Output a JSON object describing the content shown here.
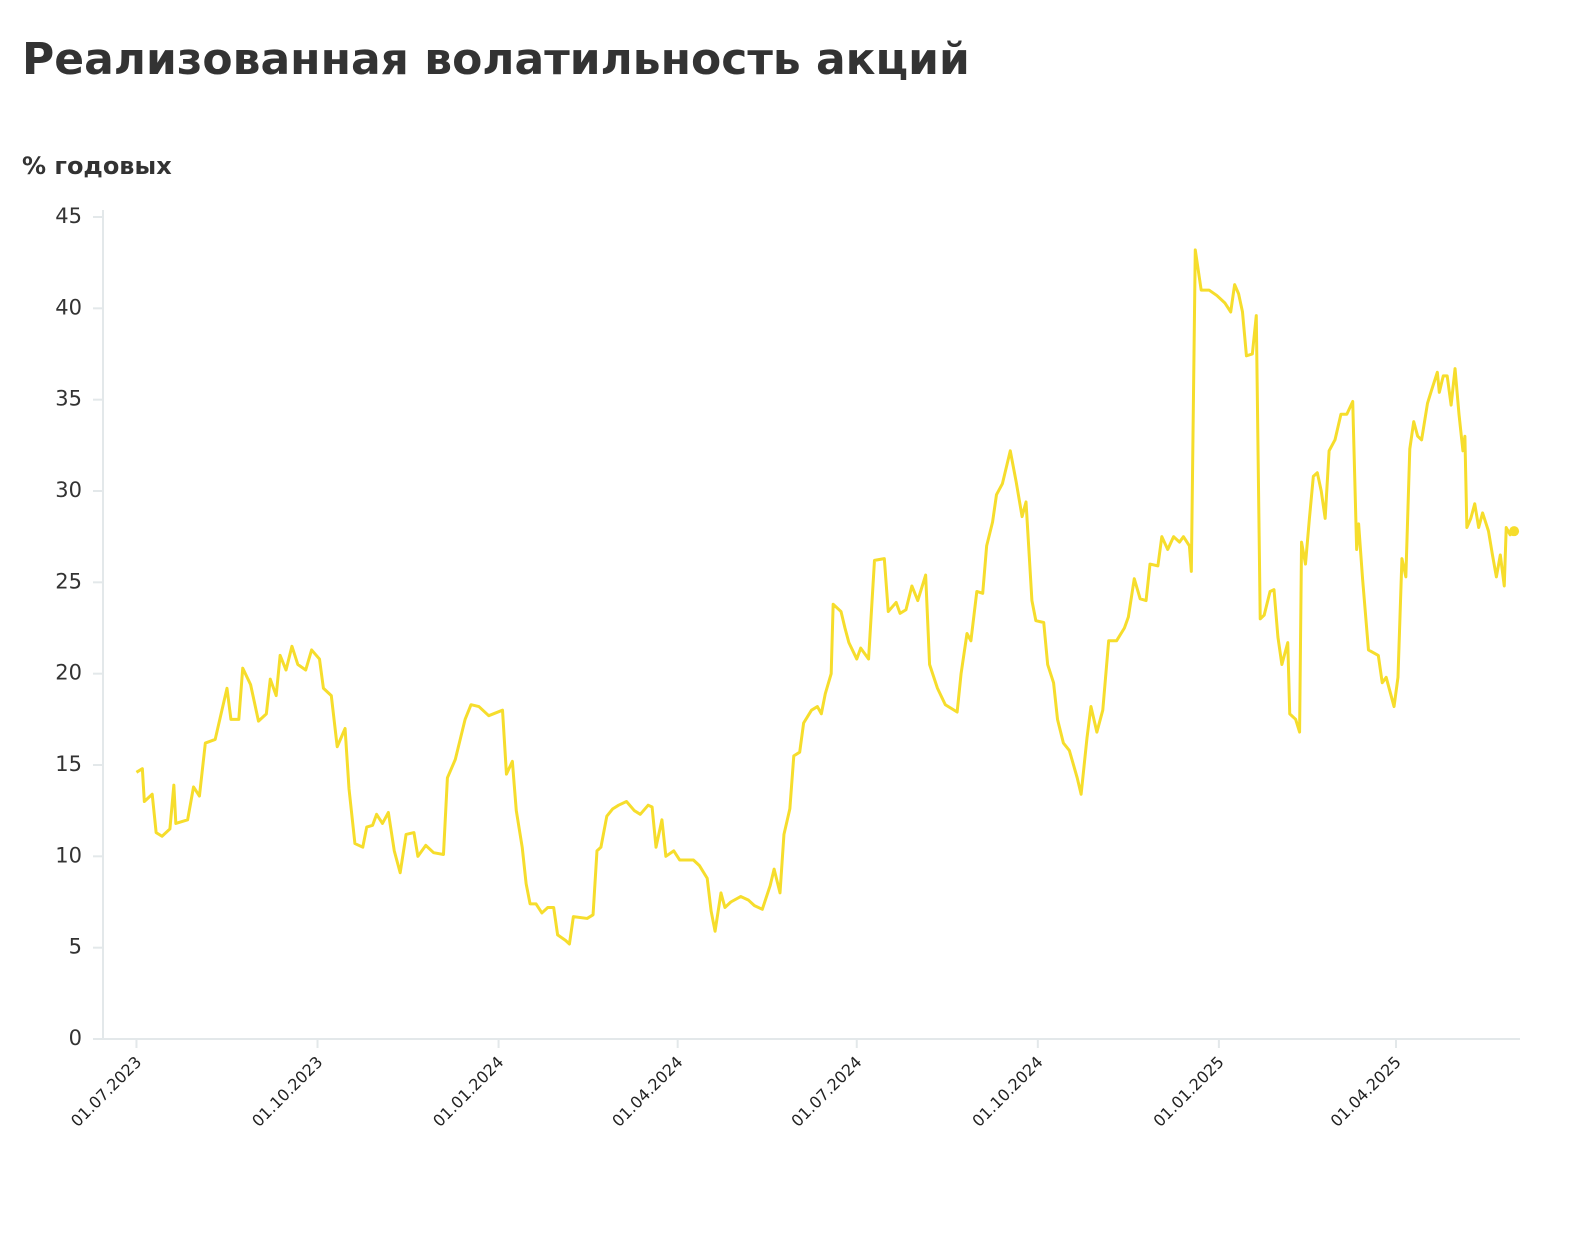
{
  "chart_data": {
    "type": "line",
    "title": "Реализованная волатильность акций",
    "y_label": "% годовых",
    "ylim": [
      0,
      45
    ],
    "yticks": [
      0,
      5,
      10,
      15,
      20,
      25,
      30,
      35,
      40,
      45
    ],
    "xlim": [
      "14.06.2023",
      "03.06.2025"
    ],
    "xticks": [
      "01.07.2023",
      "01.10.2023",
      "01.01.2024",
      "01.04.2024",
      "01.07.2024",
      "01.10.2024",
      "01.01.2025",
      "01.04.2025"
    ],
    "grid": false,
    "series": [
      {
        "color": "#f6dd2c",
        "x": [
          "01.07.2023",
          "04.07.2023",
          "05.07.2023",
          "09.07.2023",
          "11.07.2023",
          "14.07.2023",
          "18.07.2023",
          "20.07.2023",
          "21.07.2023",
          "27.07.2023",
          "30.07.2023",
          "02.08.2023",
          "05.08.2023",
          "10.08.2023",
          "13.08.2023",
          "16.08.2023",
          "18.08.2023",
          "22.08.2023",
          "24.08.2023",
          "28.08.2023",
          "01.09.2023",
          "05.09.2023",
          "07.09.2023",
          "10.09.2023",
          "12.09.2023",
          "15.09.2023",
          "18.09.2023",
          "21.09.2023",
          "25.09.2023",
          "28.09.2023",
          "02.10.2023",
          "04.10.2023",
          "08.10.2023",
          "11.10.2023",
          "15.10.2023",
          "17.10.2023",
          "20.10.2023",
          "24.10.2023",
          "26.10.2023",
          "29.10.2023",
          "31.10.2023",
          "03.11.2023",
          "06.11.2023",
          "09.11.2023",
          "12.11.2023",
          "15.11.2023",
          "19.11.2023",
          "21.11.2023",
          "25.11.2023",
          "29.11.2023",
          "04.12.2023",
          "06.12.2023",
          "10.12.2023",
          "15.12.2023",
          "18.12.2023",
          "22.12.2023",
          "27.12.2023",
          "03.01.2024",
          "05.01.2024",
          "08.01.2024",
          "10.01.2024",
          "13.01.2024",
          "15.01.2024",
          "17.01.2024",
          "20.01.2024",
          "23.01.2024",
          "26.01.2024",
          "29.01.2024",
          "31.01.2024",
          "04.02.2024",
          "06.02.2024",
          "08.02.2024",
          "15.02.2024",
          "18.02.2024",
          "20.02.2024",
          "22.02.2024",
          "25.02.2024",
          "28.02.2024",
          "02.03.2024",
          "06.03.2024",
          "10.03.2024",
          "13.03.2024",
          "17.03.2024",
          "19.03.2024",
          "21.03.2024",
          "24.03.2024",
          "26.03.2024",
          "30.03.2024",
          "02.04.2024",
          "09.04.2024",
          "12.04.2024",
          "16.04.2024",
          "18.04.2024",
          "20.04.2024",
          "23.04.2024",
          "25.04.2024",
          "28.04.2024",
          "03.05.2024",
          "07.05.2024",
          "10.05.2024",
          "14.05.2024",
          "18.05.2024",
          "20.05.2024",
          "23.05.2024",
          "25.05.2024",
          "28.05.2024",
          "30.05.2024",
          "02.06.2024",
          "04.06.2024",
          "08.06.2024",
          "11.06.2024",
          "13.06.2024",
          "15.06.2024",
          "18.06.2024",
          "19.06.2024",
          "23.06.2024",
          "25.06.2024",
          "27.06.2024",
          "01.07.2024",
          "03.07.2024",
          "07.07.2024",
          "10.07.2024",
          "15.07.2024",
          "17.07.2024",
          "21.07.2024",
          "23.07.2024",
          "26.07.2024",
          "29.07.2024",
          "01.08.2024",
          "05.08.2024",
          "07.08.2024",
          "11.08.2024",
          "15.08.2024",
          "21.08.2024",
          "23.08.2024",
          "26.08.2024",
          "28.08.2024",
          "31.08.2024",
          "03.09.2024",
          "05.09.2024",
          "08.09.2024",
          "10.09.2024",
          "13.09.2024",
          "17.09.2024",
          "20.09.2024",
          "23.09.2024",
          "25.09.2024",
          "28.09.2024",
          "30.09.2024",
          "04.10.2024",
          "06.10.2024",
          "09.10.2024",
          "11.10.2024",
          "14.10.2024",
          "17.10.2024",
          "21.10.2024",
          "23.10.2024",
          "26.10.2024",
          "28.10.2024",
          "31.10.2024",
          "03.11.2024",
          "06.11.2024",
          "10.11.2024",
          "14.11.2024",
          "16.11.2024",
          "19.11.2024",
          "22.11.2024",
          "25.11.2024",
          "27.11.2024",
          "01.12.2024",
          "03.12.2024",
          "06.12.2024",
          "09.12.2024",
          "12.12.2024",
          "14.12.2024",
          "17.12.2024",
          "18.12.2024",
          "20.12.2024",
          "23.12.2024",
          "27.12.2024",
          "31.12.2024",
          "04.01.2025",
          "07.01.2025",
          "09.01.2025",
          "11.01.2025",
          "13.01.2025",
          "15.01.2025",
          "18.01.2025",
          "20.01.2025",
          "22.01.2025",
          "24.01.2025",
          "27.01.2025",
          "29.01.2025",
          "31.01.2025",
          "02.02.2025",
          "05.02.2025",
          "06.02.2025",
          "09.02.2025",
          "11.02.2025",
          "12.02.2025",
          "14.02.2025",
          "16.02.2025",
          "18.02.2025",
          "20.02.2025",
          "22.02.2025",
          "24.02.2025",
          "26.02.2025",
          "01.03.2025",
          "04.03.2025",
          "07.03.2025",
          "10.03.2025",
          "12.03.2025",
          "13.03.2025",
          "15.03.2025",
          "18.03.2025",
          "23.03.2025",
          "25.03.2025",
          "27.03.2025",
          "31.03.2025",
          "02.04.2025",
          "04.04.2025",
          "06.04.2025",
          "08.04.2025",
          "10.04.2025",
          "12.04.2025",
          "14.04.2025",
          "17.04.2025",
          "19.04.2025",
          "22.04.2025",
          "23.04.2025",
          "25.04.2025",
          "27.04.2025",
          "29.04.2025",
          "01.05.2025",
          "03.05.2025",
          "05.05.2025",
          "06.05.2025",
          "07.05.2025",
          "09.05.2025",
          "11.05.2025",
          "13.05.2025",
          "15.05.2025",
          "18.05.2025",
          "20.05.2025",
          "22.05.2025",
          "24.05.2025",
          "26.05.2025",
          "27.05.2025",
          "29.05.2025",
          "31.05.2025"
        ],
        "values": [
          14.6,
          14.8,
          13.0,
          13.4,
          11.3,
          11.1,
          11.5,
          13.9,
          11.8,
          12.0,
          13.8,
          13.3,
          16.2,
          16.4,
          17.8,
          19.2,
          17.5,
          17.5,
          20.3,
          19.4,
          17.4,
          17.8,
          19.7,
          18.8,
          21.0,
          20.2,
          21.5,
          20.5,
          20.2,
          21.3,
          20.8,
          19.2,
          18.8,
          16.0,
          17.0,
          13.7,
          10.7,
          10.5,
          11.6,
          11.7,
          12.3,
          11.8,
          12.4,
          10.3,
          9.1,
          11.2,
          11.3,
          10.0,
          10.6,
          10.2,
          10.1,
          14.3,
          15.3,
          17.5,
          18.3,
          18.2,
          17.7,
          18.0,
          14.5,
          15.2,
          12.5,
          10.5,
          8.5,
          7.4,
          7.4,
          6.9,
          7.2,
          7.2,
          5.7,
          5.4,
          5.2,
          6.7,
          6.6,
          6.8,
          10.3,
          10.5,
          12.2,
          12.6,
          12.8,
          13.0,
          12.5,
          12.3,
          12.8,
          12.7,
          10.5,
          12.0,
          10.0,
          10.3,
          9.8,
          9.8,
          9.5,
          8.8,
          7.0,
          5.9,
          8.0,
          7.2,
          7.5,
          7.8,
          7.6,
          7.3,
          7.1,
          8.4,
          9.3,
          8.0,
          11.2,
          12.6,
          15.5,
          15.7,
          17.3,
          18.0,
          18.2,
          17.8,
          18.9,
          20.0,
          23.8,
          23.4,
          22.5,
          21.7,
          20.8,
          21.4,
          20.8,
          26.2,
          26.3,
          23.4,
          23.9,
          23.3,
          23.5,
          24.8,
          24.0,
          25.4,
          20.5,
          19.2,
          18.3,
          17.9,
          20.0,
          22.2,
          21.8,
          24.5,
          24.4,
          27.0,
          28.3,
          29.8,
          30.4,
          32.2,
          30.5,
          28.6,
          29.4,
          24.0,
          22.9,
          22.8,
          20.5,
          19.5,
          17.5,
          16.2,
          15.8,
          14.3,
          13.4,
          16.5,
          18.2,
          16.8,
          18.0,
          21.8,
          21.8,
          22.5,
          23.1,
          25.2,
          24.1,
          24.0,
          26.0,
          25.9,
          27.5,
          26.8,
          27.5,
          27.2,
          27.5,
          27.0,
          25.6,
          43.2,
          41.0,
          41.0,
          40.7,
          40.3,
          39.8,
          41.3,
          40.8,
          39.8,
          37.4,
          37.5,
          39.6,
          23.0,
          23.2,
          24.5,
          24.6,
          22.0,
          20.5,
          21.7,
          17.8,
          17.5,
          16.8,
          27.2,
          26.0,
          28.5,
          30.8,
          31.0,
          30.0,
          28.5,
          32.2,
          32.8,
          34.2,
          34.2,
          34.9,
          26.8,
          28.2,
          25.2,
          21.3,
          21.0,
          19.5,
          19.8,
          18.2,
          19.8,
          26.3,
          25.3,
          32.3,
          33.8,
          33.0,
          32.8,
          34.8,
          35.5,
          36.5,
          35.4,
          36.3,
          36.3,
          34.7,
          36.7,
          34.2,
          32.2,
          33.0,
          28.0,
          28.5,
          29.3,
          28.0,
          28.8,
          27.8,
          26.5,
          25.3,
          26.5,
          24.8,
          28.0,
          27.6,
          27.8
        ]
      }
    ]
  }
}
